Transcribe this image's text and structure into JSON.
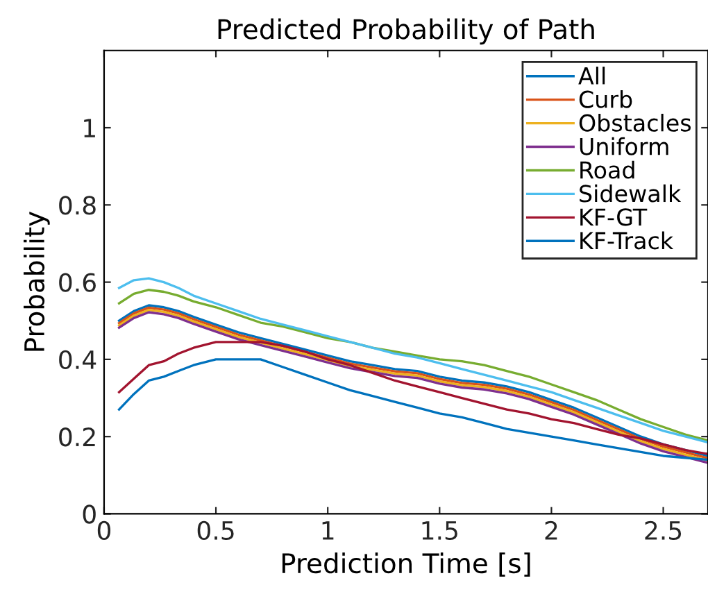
{
  "chart_data": {
    "type": "line",
    "title": "Predicted Probability of Path",
    "xlabel": "Prediction Time [s]",
    "ylabel": "Probability",
    "x": [
      0.067,
      0.133,
      0.2,
      0.267,
      0.333,
      0.4,
      0.5,
      0.6,
      0.7,
      0.8,
      0.9,
      1.0,
      1.1,
      1.2,
      1.3,
      1.4,
      1.5,
      1.6,
      1.7,
      1.8,
      1.9,
      2.0,
      2.1,
      2.2,
      2.3,
      2.4,
      2.5,
      2.6,
      2.7
    ],
    "series": [
      {
        "name": "All",
        "color": "#0072bd",
        "values": [
          0.5,
          0.525,
          0.54,
          0.535,
          0.525,
          0.51,
          0.49,
          0.47,
          0.455,
          0.44,
          0.425,
          0.41,
          0.395,
          0.385,
          0.375,
          0.37,
          0.355,
          0.345,
          0.34,
          0.33,
          0.315,
          0.295,
          0.275,
          0.25,
          0.225,
          0.2,
          0.18,
          0.165,
          0.15
        ]
      },
      {
        "name": "Curb",
        "color": "#d95319",
        "values": [
          0.494,
          0.519,
          0.534,
          0.529,
          0.519,
          0.504,
          0.484,
          0.464,
          0.449,
          0.434,
          0.419,
          0.404,
          0.389,
          0.379,
          0.369,
          0.364,
          0.349,
          0.339,
          0.334,
          0.324,
          0.309,
          0.289,
          0.269,
          0.244,
          0.219,
          0.194,
          0.174,
          0.159,
          0.144
        ]
      },
      {
        "name": "Obstacles",
        "color": "#edb120",
        "values": [
          0.488,
          0.513,
          0.528,
          0.523,
          0.513,
          0.498,
          0.478,
          0.458,
          0.443,
          0.428,
          0.413,
          0.398,
          0.383,
          0.373,
          0.363,
          0.358,
          0.343,
          0.333,
          0.328,
          0.318,
          0.303,
          0.283,
          0.263,
          0.238,
          0.213,
          0.188,
          0.168,
          0.153,
          0.138
        ]
      },
      {
        "name": "Uniform",
        "color": "#7e2f8e",
        "values": [
          0.482,
          0.507,
          0.522,
          0.517,
          0.507,
          0.492,
          0.472,
          0.452,
          0.437,
          0.422,
          0.407,
          0.392,
          0.377,
          0.367,
          0.357,
          0.352,
          0.337,
          0.327,
          0.322,
          0.312,
          0.297,
          0.277,
          0.257,
          0.232,
          0.207,
          0.182,
          0.162,
          0.147,
          0.132
        ]
      },
      {
        "name": "Road",
        "color": "#77ac30",
        "values": [
          0.545,
          0.57,
          0.58,
          0.575,
          0.565,
          0.55,
          0.535,
          0.515,
          0.495,
          0.485,
          0.47,
          0.455,
          0.445,
          0.43,
          0.42,
          0.41,
          0.4,
          0.395,
          0.385,
          0.37,
          0.355,
          0.335,
          0.315,
          0.295,
          0.27,
          0.245,
          0.225,
          0.205,
          0.19
        ]
      },
      {
        "name": "Sidewalk",
        "color": "#4dbeee",
        "values": [
          0.585,
          0.605,
          0.61,
          0.6,
          0.585,
          0.565,
          0.545,
          0.525,
          0.505,
          0.49,
          0.475,
          0.46,
          0.445,
          0.43,
          0.415,
          0.405,
          0.39,
          0.375,
          0.36,
          0.345,
          0.33,
          0.315,
          0.295,
          0.275,
          0.255,
          0.235,
          0.215,
          0.2,
          0.185
        ]
      },
      {
        "name": "KF-GT",
        "color": "#a2142f",
        "values": [
          0.315,
          0.35,
          0.385,
          0.395,
          0.415,
          0.43,
          0.445,
          0.445,
          0.445,
          0.435,
          0.42,
          0.4,
          0.385,
          0.365,
          0.345,
          0.33,
          0.315,
          0.3,
          0.285,
          0.27,
          0.26,
          0.245,
          0.235,
          0.22,
          0.205,
          0.195,
          0.18,
          0.165,
          0.155
        ]
      },
      {
        "name": "KF-Track",
        "color": "#0072bd",
        "values": [
          0.27,
          0.31,
          0.345,
          0.355,
          0.37,
          0.385,
          0.4,
          0.4,
          0.4,
          0.38,
          0.36,
          0.34,
          0.32,
          0.305,
          0.29,
          0.275,
          0.26,
          0.25,
          0.235,
          0.22,
          0.21,
          0.2,
          0.19,
          0.18,
          0.17,
          0.16,
          0.15,
          0.145,
          0.14
        ]
      }
    ],
    "xlim": [
      0,
      2.7
    ],
    "ylim": [
      0,
      1.2
    ],
    "xticks": [
      0,
      0.5,
      1,
      1.5,
      2,
      2.5
    ],
    "yticks": [
      0,
      0.2,
      0.4,
      0.6,
      0.8,
      1
    ],
    "grid": false,
    "legend": "top right",
    "marker": "none",
    "line_style": "solid"
  }
}
